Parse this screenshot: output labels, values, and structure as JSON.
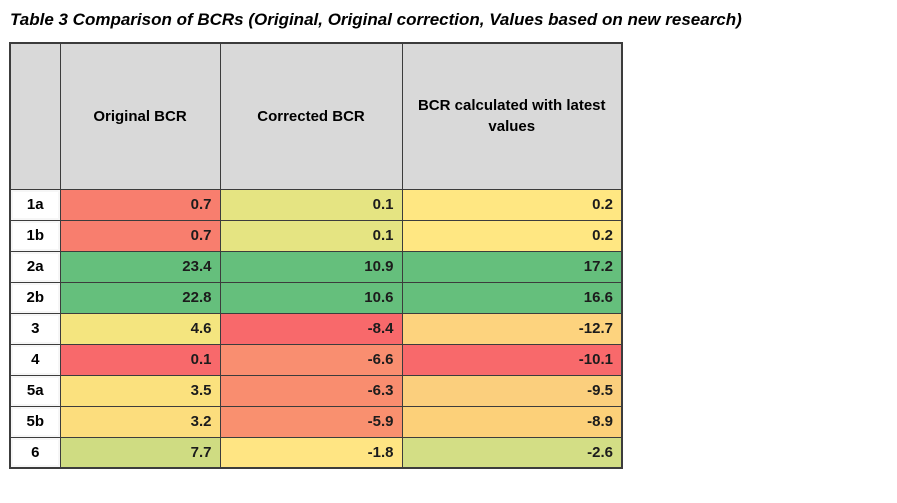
{
  "title": "Table 3 Comparison of BCRs (Original, Original correction, Values based on new research)",
  "table": {
    "header_bg": "#D9D9D9",
    "border_color": "#3C3C3C",
    "headers": [
      "",
      "Original BCR",
      "Corrected BCR",
      "BCR calculated with latest values"
    ],
    "rows": [
      {
        "label": "1a",
        "values": [
          "0.7",
          "0.1",
          "0.2"
        ],
        "colors": [
          "#F87E6E",
          "#E5E482",
          "#FFE782"
        ]
      },
      {
        "label": "1b",
        "values": [
          "0.7",
          "0.1",
          "0.2"
        ],
        "colors": [
          "#F87E6E",
          "#E5E482",
          "#FFE782"
        ]
      },
      {
        "label": "2a",
        "values": [
          "23.4",
          "10.9",
          "17.2"
        ],
        "colors": [
          "#65BF7C",
          "#65BF7C",
          "#65BF7C"
        ]
      },
      {
        "label": "2b",
        "values": [
          "22.8",
          "10.6",
          "16.6"
        ],
        "colors": [
          "#65BF7C",
          "#65BF7C",
          "#65BF7C"
        ]
      },
      {
        "label": "3",
        "values": [
          "4.6",
          "-8.4",
          "-12.7"
        ],
        "colors": [
          "#F4E57F",
          "#F8696B",
          "#FDD37E"
        ]
      },
      {
        "label": "4",
        "values": [
          "0.1",
          "-6.6",
          "-10.1"
        ],
        "colors": [
          "#F8696B",
          "#F98E70",
          "#F8696B"
        ]
      },
      {
        "label": "5a",
        "values": [
          "3.5",
          "-6.3",
          "-9.5"
        ],
        "colors": [
          "#FBE17E",
          "#F98D6F",
          "#FBCF7D"
        ]
      },
      {
        "label": "5b",
        "values": [
          "3.2",
          "-5.9",
          "-8.9"
        ],
        "colors": [
          "#FCDD7D",
          "#F9906F",
          "#FCD079"
        ]
      },
      {
        "label": "6",
        "values": [
          "7.7",
          "-1.8",
          "-2.6"
        ],
        "colors": [
          "#CFDC82",
          "#FFE583",
          "#D3DE85"
        ]
      }
    ]
  }
}
